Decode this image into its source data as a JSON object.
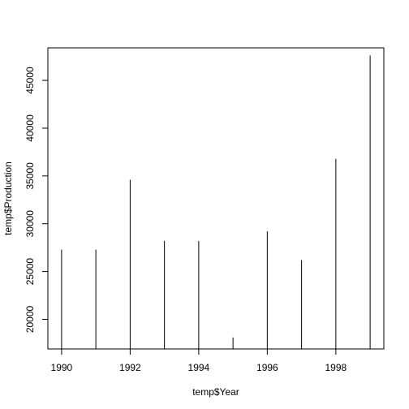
{
  "chart_data": {
    "type": "bar",
    "style": "vertical-lines",
    "xlabel": "temp$Year",
    "ylabel": "temp$Production",
    "x": [
      1990,
      1991,
      1992,
      1993,
      1994,
      1995,
      1996,
      1997,
      1998,
      1999
    ],
    "values": [
      27300,
      27300,
      34600,
      28200,
      28200,
      18100,
      29200,
      26200,
      36800,
      47600
    ],
    "xlim": [
      1989.6,
      1999.4
    ],
    "ylim": [
      16900,
      48400
    ],
    "xticks": [
      1990,
      1992,
      1994,
      1996,
      1998
    ],
    "yticks": [
      20000,
      25000,
      30000,
      35000,
      40000,
      45000
    ],
    "grid": false,
    "colors": {
      "line": "#000000",
      "axis": "#000000",
      "background": "#ffffff"
    }
  }
}
